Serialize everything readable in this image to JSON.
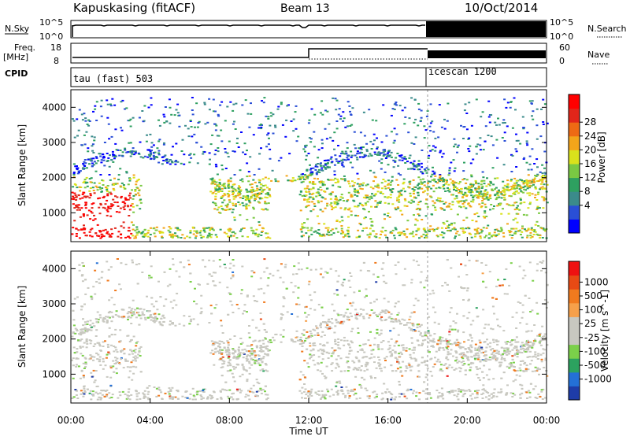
{
  "header": {
    "station": "Kapuskasing (fitACF)",
    "beam": "Beam 13",
    "date": "10/Oct/2014"
  },
  "side_labels": {
    "nsky": "N.Sky",
    "nsearch": "N.Search",
    "freq_line1": "Freq.",
    "freq_line2": "[MHz]",
    "nave": "Nave",
    "cpid": "CPID"
  },
  "cpid_segments": [
    {
      "label": "tau (fast) 503",
      "start_hour": 0
    },
    {
      "label": "icescan 1200",
      "start_hour": 18
    }
  ],
  "nsky_axis": {
    "ticks": [
      "10^5",
      "10^0"
    ]
  },
  "nsearch_axis": {
    "ticks": [
      "10^5",
      "10^0"
    ]
  },
  "freq_axis": {
    "ticks": [
      "18",
      "8"
    ]
  },
  "nave_axis": {
    "ticks": [
      "60",
      "0"
    ]
  },
  "chart_data": [
    {
      "type": "heatmap",
      "name": "Power",
      "ylabel": "Slant Range [km]",
      "y_ticks": [
        1000,
        2000,
        3000,
        4000
      ],
      "ylim": [
        180,
        4500
      ],
      "x_range_hours": [
        0,
        24
      ],
      "colorbar": {
        "label": "Power [dB]",
        "ticks": [
          "28",
          "24",
          "20",
          "16",
          "12",
          "8",
          "4"
        ],
        "colors": [
          "#0000ff",
          "#2a4fd6",
          "#3b8b8b",
          "#2ea060",
          "#7ac943",
          "#d9e21c",
          "#f3a51a",
          "#ee6a14",
          "#e1261a",
          "#ff0000"
        ]
      }
    },
    {
      "type": "heatmap",
      "name": "Velocity",
      "ylabel": "Slant Range [km]",
      "y_ticks": [
        1000,
        2000,
        3000,
        4000
      ],
      "ylim": [
        180,
        4500
      ],
      "x_range_hours": [
        0,
        24
      ],
      "colorbar": {
        "label": "Velocity [m s^-1]",
        "ticks": [
          "1000",
          "500",
          "100",
          "25",
          "-25",
          "-100",
          "-500",
          "-1000"
        ],
        "colors": [
          "#1e3ca8",
          "#2470d6",
          "#2ca25f",
          "#7bd04a",
          "#c8c8c0",
          "#c8c8c0",
          "#f6a04a",
          "#f07a1e",
          "#e84a14",
          "#ee1111"
        ]
      }
    }
  ],
  "x_axis": {
    "label": "Time UT",
    "ticks": [
      "00:00",
      "04:00",
      "08:00",
      "12:00",
      "16:00",
      "20:00",
      "00:00"
    ]
  }
}
